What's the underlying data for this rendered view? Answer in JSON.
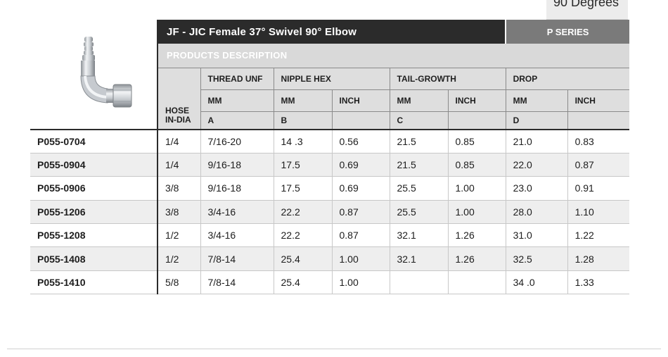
{
  "corner_tab": "90 Degrees",
  "title": "JF - JIC Female 37° Swivel 90° Elbow",
  "series": "P SERIES",
  "description_label": "PRODUCTS DESCRIPTION",
  "headers": {
    "hose": [
      "HOSE",
      "IN-DIA"
    ],
    "thread": "THREAD UNF",
    "nipple": "NIPPLE HEX",
    "tail": "TAIL-GROWTH",
    "drop": "DROP",
    "mm": "MM",
    "inch": "INCH",
    "a": "A",
    "b": "B",
    "c": "C",
    "d": "D"
  },
  "rows": [
    {
      "code": "P055-0704",
      "hose": "1/4",
      "thread": "7/16-20",
      "b_mm": "14 .3",
      "b_in": "0.56",
      "c_mm": "21.5",
      "c_in": "0.85",
      "d_mm": "21.0",
      "d_in": "0.83"
    },
    {
      "code": "P055-0904",
      "hose": "1/4",
      "thread": "9/16-18",
      "b_mm": "17.5",
      "b_in": "0.69",
      "c_mm": "21.5",
      "c_in": "0.85",
      "d_mm": "22.0",
      "d_in": "0.87"
    },
    {
      "code": "P055-0906",
      "hose": "3/8",
      "thread": "9/16-18",
      "b_mm": "17.5",
      "b_in": "0.69",
      "c_mm": "25.5",
      "c_in": "1.00",
      "d_mm": "23.0",
      "d_in": "0.91"
    },
    {
      "code": "P055-1206",
      "hose": "3/8",
      "thread": "3/4-16",
      "b_mm": "22.2",
      "b_in": "0.87",
      "c_mm": "25.5",
      "c_in": "1.00",
      "d_mm": "28.0",
      "d_in": "1.10"
    },
    {
      "code": "P055-1208",
      "hose": "1/2",
      "thread": "3/4-16",
      "b_mm": "22.2",
      "b_in": "0.87",
      "c_mm": "32.1",
      "c_in": "1.26",
      "d_mm": "31.0",
      "d_in": "1.22"
    },
    {
      "code": "P055-1408",
      "hose": "1/2",
      "thread": "7/8-14",
      "b_mm": "25.4",
      "b_in": "1.00",
      "c_mm": "32.1",
      "c_in": "1.26",
      "d_mm": "32.5",
      "d_in": "1.28"
    },
    {
      "code": "P055-1410",
      "hose": "5/8",
      "thread": "7/8-14",
      "b_mm": "25.4",
      "b_in": "1.00",
      "c_mm": "",
      "c_in": "",
      "d_mm": "34 .0",
      "d_in": "1.33"
    }
  ],
  "colors": {
    "header_dark": "#2b2b2b",
    "series_gray": "#7a7a7a",
    "header_light": "#dedede",
    "row_alt": "#eeeeee"
  }
}
